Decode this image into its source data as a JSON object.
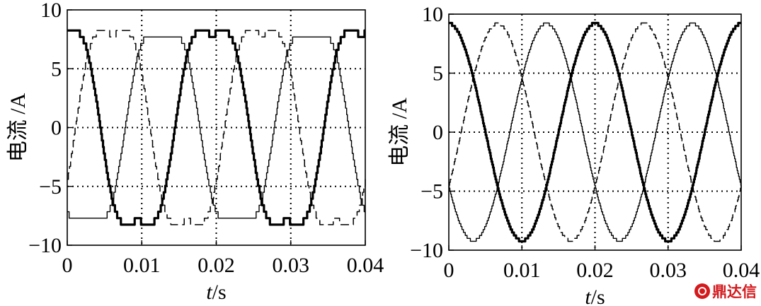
{
  "chart_data": [
    {
      "type": "line",
      "title": "",
      "xlabel": "t/s",
      "xlabel_var": "t",
      "xlabel_unit": "/s",
      "ylabel": "电流 /A",
      "xlim": [
        0,
        0.04
      ],
      "ylim": [
        -10,
        10
      ],
      "xticks": [
        0,
        0.01,
        0.02,
        0.03,
        0.04
      ],
      "xtick_labels": [
        "0",
        "0.01",
        "0.02",
        "0.03",
        "0.04"
      ],
      "yticks": [
        -10,
        -5,
        0,
        5,
        10
      ],
      "ytick_labels": [
        "−10",
        "−5",
        "0",
        "5",
        "10"
      ],
      "grid": "dotted",
      "frequency_hz": 50,
      "series": [
        {
          "style": "thick-solid",
          "amplitude": 9,
          "phase_deg": 100,
          "distortion": "clipped-stepped"
        },
        {
          "style": "thin-solid",
          "amplitude": 8.7,
          "phase_deg": 220,
          "distortion": "clipped-stepped"
        },
        {
          "style": "dashed",
          "amplitude": 9,
          "phase_deg": 340,
          "distortion": "clipped-stepped"
        }
      ]
    },
    {
      "type": "line",
      "title": "",
      "xlabel": "t/s",
      "xlabel_var": "t",
      "xlabel_unit": "/s",
      "ylabel": "电流 /A",
      "xlim": [
        0,
        0.04
      ],
      "ylim": [
        -10,
        10
      ],
      "xticks": [
        0,
        0.01,
        0.02,
        0.03,
        0.04
      ],
      "xtick_labels": [
        "0",
        "0.01",
        "0.02",
        "0.03",
        "0.04"
      ],
      "yticks": [
        -10,
        -5,
        0,
        5,
        10
      ],
      "ytick_labels": [
        "−10",
        "−5",
        "0",
        "5",
        "10"
      ],
      "grid": "dotted",
      "frequency_hz": 50,
      "series": [
        {
          "style": "thick-solid",
          "amplitude": 9.2,
          "phase_deg": 90,
          "distortion": "sinusoidal"
        },
        {
          "style": "thin-solid",
          "amplitude": 9.2,
          "phase_deg": 210,
          "distortion": "sinusoidal"
        },
        {
          "style": "dashed",
          "amplitude": 9.2,
          "phase_deg": 330,
          "distortion": "sinusoidal"
        }
      ]
    }
  ],
  "watermark": {
    "text": "鼎达信",
    "color": "#d4191d"
  }
}
